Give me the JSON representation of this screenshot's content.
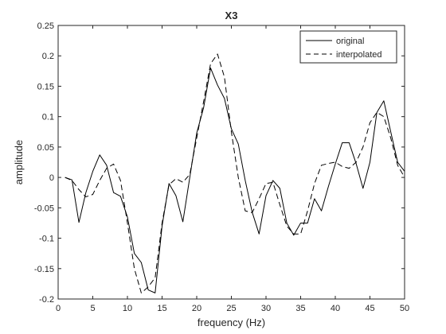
{
  "chart_data": {
    "type": "line",
    "title": "X3",
    "xlabel": "frequency (Hz)",
    "ylabel": "amplitude",
    "xlim": [
      0,
      50
    ],
    "ylim": [
      -0.2,
      0.25
    ],
    "xticks": [
      0,
      5,
      10,
      15,
      20,
      25,
      30,
      35,
      40,
      45,
      50
    ],
    "yticks": [
      -0.2,
      -0.15,
      -0.1,
      -0.05,
      0,
      0.05,
      0.1,
      0.15,
      0.2,
      0.25
    ],
    "grid": false,
    "legend_position": "top-right",
    "series": [
      {
        "name": "original",
        "style": "solid",
        "color": "#000000",
        "x": [
          1,
          2,
          3,
          4,
          5,
          6,
          7,
          8,
          9,
          10,
          11,
          12,
          13,
          14,
          15,
          16,
          17,
          18,
          19,
          20,
          21,
          22,
          23,
          24,
          25,
          26,
          27,
          28,
          29,
          30,
          31,
          32,
          33,
          34,
          35,
          36,
          37,
          38,
          39,
          40,
          41,
          42,
          43,
          44,
          45,
          46,
          47,
          48,
          49,
          50
        ],
        "values": [
          0.0,
          -0.004,
          -0.074,
          -0.025,
          0.01,
          0.037,
          0.02,
          -0.025,
          -0.031,
          -0.065,
          -0.125,
          -0.14,
          -0.185,
          -0.19,
          -0.08,
          -0.01,
          -0.03,
          -0.073,
          -0.0,
          0.073,
          0.115,
          0.18,
          0.152,
          0.13,
          0.08,
          0.055,
          -0.005,
          -0.057,
          -0.093,
          -0.03,
          -0.005,
          -0.018,
          -0.075,
          -0.095,
          -0.075,
          -0.075,
          -0.035,
          -0.055,
          -0.015,
          0.022,
          0.057,
          0.057,
          0.023,
          -0.018,
          0.025,
          0.107,
          0.126,
          0.075,
          0.025,
          0.01
        ]
      },
      {
        "name": "interpolated",
        "style": "dashed",
        "color": "#000000",
        "x": [
          1,
          2,
          3,
          4,
          5,
          6,
          7,
          8,
          9,
          10,
          11,
          12,
          13,
          14,
          15,
          16,
          17,
          18,
          19,
          20,
          21,
          22,
          23,
          24,
          25,
          26,
          27,
          28,
          29,
          30,
          31,
          32,
          33,
          34,
          35,
          36,
          37,
          38,
          39,
          40,
          41,
          42,
          43,
          44,
          45,
          46,
          47,
          48,
          49,
          50
        ],
        "values": [
          0.0,
          -0.005,
          -0.02,
          -0.032,
          -0.028,
          -0.005,
          0.015,
          0.022,
          -0.005,
          -0.075,
          -0.15,
          -0.19,
          -0.18,
          -0.165,
          -0.075,
          -0.012,
          -0.002,
          -0.008,
          0.005,
          0.065,
          0.125,
          0.187,
          0.203,
          0.165,
          0.075,
          0.0,
          -0.055,
          -0.058,
          -0.035,
          -0.01,
          -0.008,
          -0.045,
          -0.08,
          -0.093,
          -0.093,
          -0.055,
          -0.01,
          0.02,
          0.023,
          0.025,
          0.018,
          0.015,
          0.025,
          0.05,
          0.09,
          0.107,
          0.1,
          0.065,
          0.02,
          0.0
        ]
      }
    ]
  }
}
